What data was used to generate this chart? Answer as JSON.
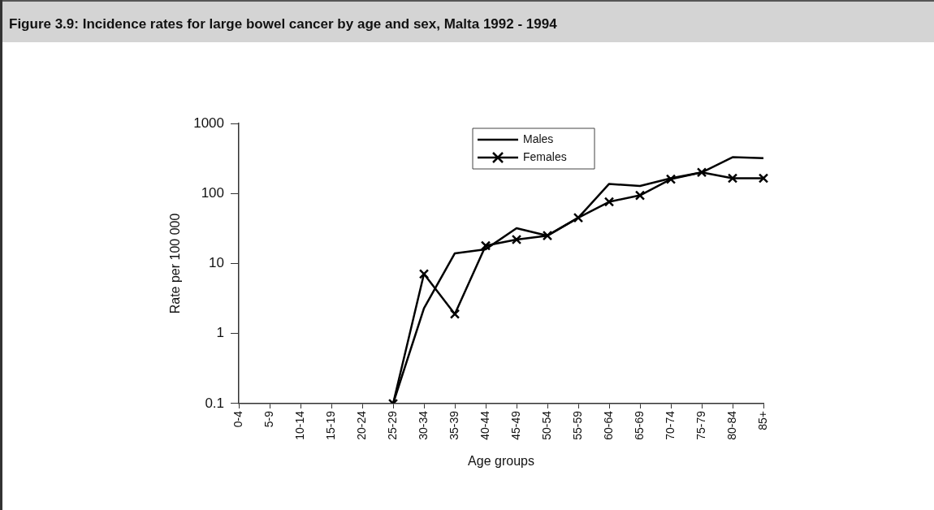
{
  "chart_data": {
    "type": "line",
    "title": "Figure 3.9: Incidence rates for large bowel cancer by age and sex, Malta 1992 - 1994",
    "xlabel": "Age groups",
    "ylabel": "Rate per 100 000",
    "categories": [
      "0-4",
      "5-9",
      "10-14",
      "15-19",
      "20-24",
      "25-29",
      "30-34",
      "35-39",
      "40-44",
      "45-49",
      "50-54",
      "55-59",
      "60-64",
      "65-69",
      "70-74",
      "75-79",
      "80-84",
      "85+"
    ],
    "series": [
      {
        "name": "Males",
        "color": "#000000",
        "marker": "none",
        "values": [
          null,
          null,
          null,
          null,
          null,
          0.1,
          2.3,
          14,
          16,
          32,
          25,
          45,
          137,
          128,
          165,
          200,
          330,
          320
        ]
      },
      {
        "name": "Females",
        "color": "#000000",
        "marker": "cross",
        "values": [
          null,
          null,
          null,
          null,
          null,
          0.1,
          7.1,
          1.9,
          18,
          22,
          25,
          45,
          76,
          94,
          160,
          200,
          165,
          165
        ]
      }
    ],
    "log": "y",
    "ylim": [
      0.1,
      1000
    ],
    "yticks": [
      0.1,
      1,
      10,
      100,
      1000
    ],
    "grid": false,
    "legend": "top"
  }
}
